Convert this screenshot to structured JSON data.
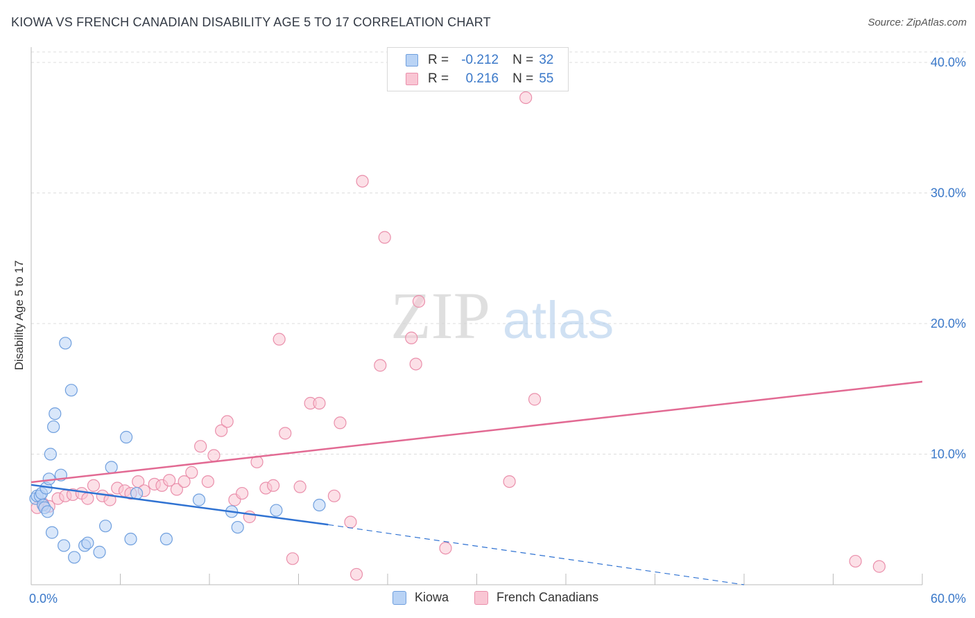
{
  "title": "KIOWA VS FRENCH CANADIAN DISABILITY AGE 5 TO 17 CORRELATION CHART",
  "source": "Source: ZipAtlas.com",
  "watermark": {
    "zip": "ZIP",
    "atlas": "atlas"
  },
  "colors": {
    "kiowa_fill": "#b9d3f5",
    "kiowa_stroke": "#6f9fde",
    "kiowa_line": "#2f72d2",
    "french_fill": "#f9c6d4",
    "french_stroke": "#ea8fab",
    "french_line": "#e26a93",
    "tick_label": "#3a78c9",
    "grid": "#dddddd"
  },
  "legend_top": {
    "rows": [
      {
        "r_label": "R =",
        "r_value": "-0.212",
        "n_label": "N =",
        "n_value": "32"
      },
      {
        "r_label": "R =",
        "r_value": "0.216",
        "n_label": "N =",
        "n_value": "55"
      }
    ]
  },
  "legend_bottom": [
    "Kiowa",
    "French Canadians"
  ],
  "chart_data": {
    "type": "scatter",
    "title": "KIOWA VS FRENCH CANADIAN DISABILITY AGE 5 TO 17 CORRELATION CHART",
    "xlabel": "",
    "ylabel": "Disability Age 5 to 17",
    "xlim": [
      0,
      60
    ],
    "ylim": [
      0,
      40.8
    ],
    "x_tick_labels": [
      "0.0%",
      "60.0%"
    ],
    "y_ticks": [
      10,
      20,
      30,
      40
    ],
    "y_tick_labels": [
      "10.0%",
      "20.0%",
      "30.0%",
      "40.0%"
    ],
    "grid": true,
    "series": [
      {
        "name": "Kiowa",
        "R": -0.212,
        "N": 32,
        "points": [
          [
            0.3,
            6.6
          ],
          [
            0.4,
            6.8
          ],
          [
            0.6,
            6.8
          ],
          [
            0.7,
            7.0
          ],
          [
            0.8,
            6.1
          ],
          [
            0.9,
            5.9
          ],
          [
            1.0,
            7.4
          ],
          [
            1.1,
            5.6
          ],
          [
            1.2,
            8.1
          ],
          [
            1.3,
            10.0
          ],
          [
            1.4,
            4.0
          ],
          [
            1.5,
            12.1
          ],
          [
            1.6,
            13.1
          ],
          [
            2.0,
            8.4
          ],
          [
            2.2,
            3.0
          ],
          [
            2.3,
            18.5
          ],
          [
            2.7,
            14.9
          ],
          [
            2.9,
            2.1
          ],
          [
            3.6,
            3.0
          ],
          [
            3.8,
            3.2
          ],
          [
            4.6,
            2.5
          ],
          [
            5.0,
            4.5
          ],
          [
            5.4,
            9.0
          ],
          [
            6.4,
            11.3
          ],
          [
            6.7,
            3.5
          ],
          [
            7.1,
            7.0
          ],
          [
            9.1,
            3.5
          ],
          [
            11.3,
            6.5
          ],
          [
            13.5,
            5.6
          ],
          [
            13.9,
            4.4
          ],
          [
            16.5,
            5.7
          ],
          [
            19.4,
            6.1
          ]
        ],
        "trend": {
          "x0": 0,
          "y0": 7.65,
          "x1": 20,
          "y1": 4.6,
          "dash_to_x": 48,
          "dash_to_y": 0.0
        }
      },
      {
        "name": "French Canadians",
        "R": 0.216,
        "N": 55,
        "points": [
          [
            0.4,
            5.9
          ],
          [
            0.8,
            6.2
          ],
          [
            1.2,
            6.0
          ],
          [
            1.8,
            6.6
          ],
          [
            2.3,
            6.8
          ],
          [
            2.8,
            6.9
          ],
          [
            3.4,
            7.0
          ],
          [
            3.8,
            6.6
          ],
          [
            4.2,
            7.6
          ],
          [
            4.8,
            6.8
          ],
          [
            5.3,
            6.5
          ],
          [
            5.8,
            7.4
          ],
          [
            6.3,
            7.2
          ],
          [
            6.7,
            7.0
          ],
          [
            7.2,
            7.9
          ],
          [
            7.6,
            7.2
          ],
          [
            8.3,
            7.7
          ],
          [
            8.8,
            7.6
          ],
          [
            9.3,
            8.0
          ],
          [
            9.8,
            7.3
          ],
          [
            10.3,
            7.9
          ],
          [
            10.8,
            8.6
          ],
          [
            11.4,
            10.6
          ],
          [
            11.9,
            7.9
          ],
          [
            12.3,
            9.9
          ],
          [
            12.8,
            11.8
          ],
          [
            13.2,
            12.5
          ],
          [
            13.7,
            6.5
          ],
          [
            14.2,
            7.0
          ],
          [
            14.7,
            5.2
          ],
          [
            15.2,
            9.4
          ],
          [
            15.8,
            7.4
          ],
          [
            16.3,
            7.6
          ],
          [
            16.7,
            18.8
          ],
          [
            17.1,
            11.6
          ],
          [
            17.6,
            2.0
          ],
          [
            18.1,
            7.5
          ],
          [
            18.8,
            13.9
          ],
          [
            19.4,
            13.9
          ],
          [
            20.4,
            6.8
          ],
          [
            20.8,
            12.4
          ],
          [
            21.5,
            4.8
          ],
          [
            21.9,
            0.8
          ],
          [
            22.3,
            30.9
          ],
          [
            23.5,
            16.8
          ],
          [
            23.8,
            26.6
          ],
          [
            25.6,
            18.9
          ],
          [
            25.9,
            16.9
          ],
          [
            26.1,
            21.7
          ],
          [
            27.9,
            2.8
          ],
          [
            32.2,
            7.9
          ],
          [
            33.3,
            37.3
          ],
          [
            33.9,
            14.2
          ],
          [
            55.5,
            1.8
          ],
          [
            57.1,
            1.4
          ]
        ],
        "trend": {
          "x0": 0,
          "y0": 7.85,
          "x1": 60,
          "y1": 15.55
        }
      }
    ]
  }
}
